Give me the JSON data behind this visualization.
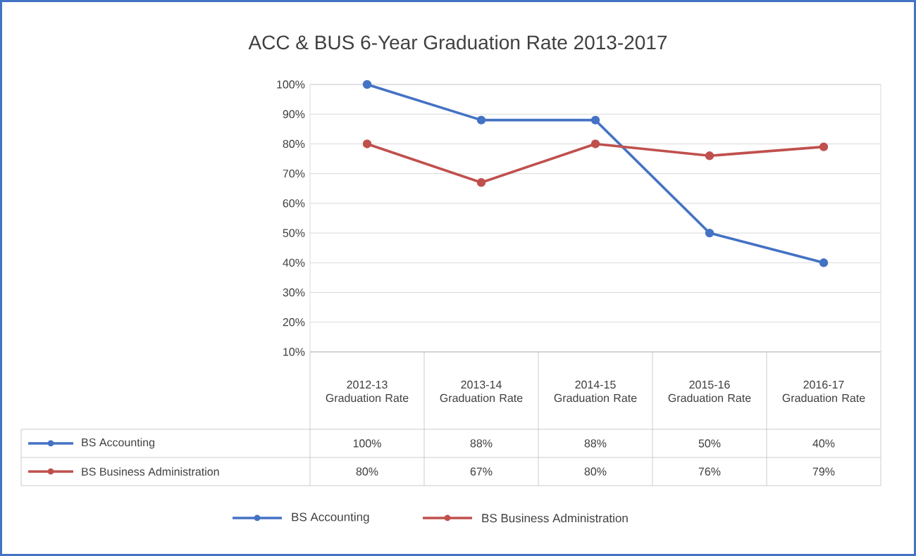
{
  "chart_data": {
    "type": "line",
    "title": "ACC & BUS 6-Year Graduation Rate 2013-2017",
    "categories": [
      "2012-13 Graduation Rate",
      "2013-14 Graduation Rate",
      "2014-15 Graduation Rate",
      "2015-16 Graduation Rate",
      "2016-17 Graduation Rate"
    ],
    "series": [
      {
        "name": "BS Accounting",
        "color": "#4472c4",
        "values": [
          100,
          88,
          88,
          50,
          40
        ],
        "value_labels": [
          "100%",
          "88%",
          "88%",
          "50%",
          "40%"
        ]
      },
      {
        "name": "BS Business Administration",
        "color": "#c0504d",
        "values": [
          80,
          67,
          80,
          76,
          79
        ],
        "value_labels": [
          "80%",
          "67%",
          "80%",
          "76%",
          "79%"
        ]
      }
    ],
    "ylim": [
      10,
      100
    ],
    "yticks": [
      {
        "value": 10,
        "label": "10%"
      },
      {
        "value": 20,
        "label": "20%"
      },
      {
        "value": 30,
        "label": "30%"
      },
      {
        "value": 40,
        "label": "40%"
      },
      {
        "value": 50,
        "label": "50%"
      },
      {
        "value": 60,
        "label": "60%"
      },
      {
        "value": 70,
        "label": "70%"
      },
      {
        "value": 80,
        "label": "80%"
      },
      {
        "value": 90,
        "label": "90%"
      },
      {
        "value": 100,
        "label": "100%"
      }
    ],
    "grid": "y",
    "legend": "bottom",
    "marker": "circle",
    "line_style": "solid"
  }
}
